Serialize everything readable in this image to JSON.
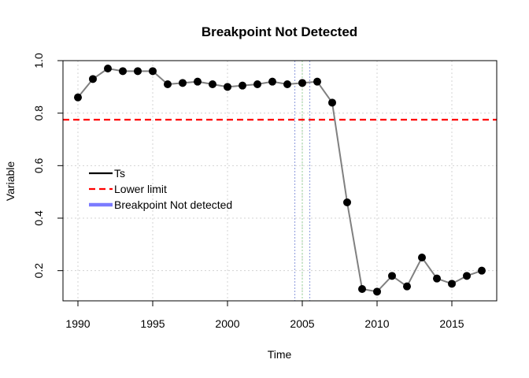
{
  "chart_data": {
    "type": "line",
    "title": "Breakpoint Not Detected",
    "xlabel": "Time",
    "ylabel": "Variable",
    "xlim": [
      1989,
      2018
    ],
    "ylim": [
      0.085,
      1.0
    ],
    "x_ticks": [
      1990,
      1995,
      2000,
      2005,
      2010,
      2015
    ],
    "y_ticks": [
      0.2,
      0.4,
      0.6,
      0.8,
      1.0
    ],
    "x_tick_labels": [
      "1990",
      "1995",
      "2000",
      "2005",
      "2010",
      "2015"
    ],
    "y_tick_labels": [
      "0.2",
      "0.4",
      "0.6",
      "0.8",
      "1.0"
    ],
    "grid": true,
    "legend_position": "left-middle",
    "series": [
      {
        "name": "Ts",
        "color": "#808080",
        "marker_color": "#000000",
        "x": [
          1990,
          1991,
          1992,
          1993,
          1994,
          1995,
          1996,
          1997,
          1998,
          1999,
          2000,
          2001,
          2002,
          2003,
          2004,
          2005,
          2006,
          2007,
          2008,
          2009,
          2010,
          2011,
          2012,
          2013,
          2014,
          2015,
          2016,
          2017
        ],
        "y": [
          0.86,
          0.93,
          0.97,
          0.96,
          0.96,
          0.96,
          0.91,
          0.915,
          0.92,
          0.91,
          0.9,
          0.905,
          0.91,
          0.92,
          0.91,
          0.915,
          0.92,
          0.84,
          0.46,
          0.13,
          0.12,
          0.18,
          0.14,
          0.25,
          0.17,
          0.15,
          0.18,
          0.2
        ]
      }
    ],
    "lower_limit": {
      "name": "Lower limit",
      "value": 0.775,
      "color": "#ff0000"
    },
    "breakpoint": {
      "name": "Breakpoint Not detected",
      "color": "#7b7bff"
    },
    "vlines": [
      {
        "x": 2004.5,
        "color": "#9aa6e0"
      },
      {
        "x": 2005.0,
        "color": "#a8d8a8"
      },
      {
        "x": 2005.5,
        "color": "#9aa6e0"
      }
    ],
    "legend": [
      {
        "label": "Ts",
        "color": "#000000",
        "style": "solid"
      },
      {
        "label": "Lower limit",
        "color": "#ff0000",
        "style": "dashed"
      },
      {
        "label": "Breakpoint Not detected",
        "color": "#7b7bff",
        "style": "thick"
      }
    ]
  }
}
